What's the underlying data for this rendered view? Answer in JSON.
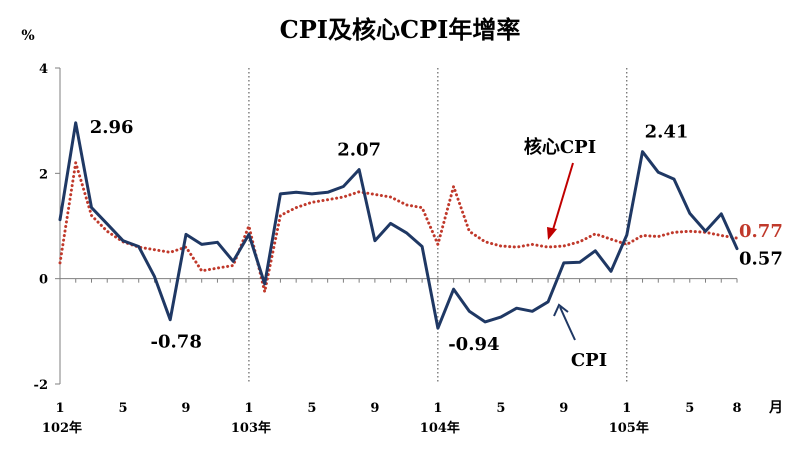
{
  "chart_data": {
    "type": "line",
    "title": "CPI及核心CPI年增率",
    "ylabel": "%",
    "xlabel_unit": "月",
    "ylim": [
      -2,
      4
    ],
    "yticks": [
      "-2",
      "0",
      "2",
      "4"
    ],
    "xticks": [
      {
        "index": 0,
        "label": "1"
      },
      {
        "index": 4,
        "label": "5"
      },
      {
        "index": 8,
        "label": "9"
      },
      {
        "index": 12,
        "label": "1"
      },
      {
        "index": 16,
        "label": "5"
      },
      {
        "index": 20,
        "label": "9"
      },
      {
        "index": 24,
        "label": "1"
      },
      {
        "index": 28,
        "label": "5"
      },
      {
        "index": 32,
        "label": "9"
      },
      {
        "index": 36,
        "label": "1"
      },
      {
        "index": 40,
        "label": "5"
      },
      {
        "index": 43,
        "label": "8"
      }
    ],
    "year_labels": [
      {
        "index": 0,
        "label": "102年"
      },
      {
        "index": 12,
        "label": "103年"
      },
      {
        "index": 24,
        "label": "104年"
      },
      {
        "index": 36,
        "label": "105年"
      }
    ],
    "year_separators": [
      12,
      24,
      36
    ],
    "series": [
      {
        "name": "CPI",
        "color": "#1f3864",
        "style": "solid",
        "values": [
          1.12,
          2.96,
          1.35,
          1.04,
          0.72,
          0.61,
          0.04,
          -0.78,
          0.84,
          0.65,
          0.69,
          0.33,
          0.84,
          -0.1,
          1.61,
          1.64,
          1.61,
          1.64,
          1.75,
          2.07,
          0.72,
          1.05,
          0.87,
          0.61,
          -0.94,
          -0.2,
          -0.62,
          -0.82,
          -0.73,
          -0.56,
          -0.62,
          -0.44,
          0.3,
          0.31,
          0.53,
          0.14,
          0.83,
          2.41,
          2.02,
          1.89,
          1.24,
          0.9,
          1.23,
          0.57
        ]
      },
      {
        "name": "核心CPI",
        "color": "#c0392b",
        "style": "dotted",
        "values": [
          0.3,
          2.2,
          1.2,
          0.9,
          0.7,
          0.6,
          0.55,
          0.5,
          0.6,
          0.15,
          0.2,
          0.25,
          1.0,
          -0.25,
          1.2,
          1.35,
          1.45,
          1.5,
          1.55,
          1.65,
          1.6,
          1.55,
          1.4,
          1.35,
          0.65,
          1.75,
          0.9,
          0.7,
          0.62,
          0.6,
          0.65,
          0.6,
          0.62,
          0.7,
          0.85,
          0.75,
          0.65,
          0.82,
          0.8,
          0.88,
          0.9,
          0.88,
          0.82,
          0.77
        ]
      }
    ],
    "annotations": {
      "cpi_max_102": {
        "index": 1,
        "text": "2.96"
      },
      "cpi_min_102": {
        "index": 7,
        "text": "-0.78"
      },
      "cpi_max_103": {
        "index": 19,
        "text": "2.07"
      },
      "cpi_min_104": {
        "index": 24,
        "text": "-0.94"
      },
      "cpi_max_105": {
        "index": 37,
        "text": "2.41"
      },
      "core_last": {
        "index": 43,
        "text": "0.77"
      },
      "cpi_last": {
        "index": 43,
        "text": "0.57"
      },
      "core_label": "核心CPI",
      "cpi_label": "CPI"
    }
  }
}
